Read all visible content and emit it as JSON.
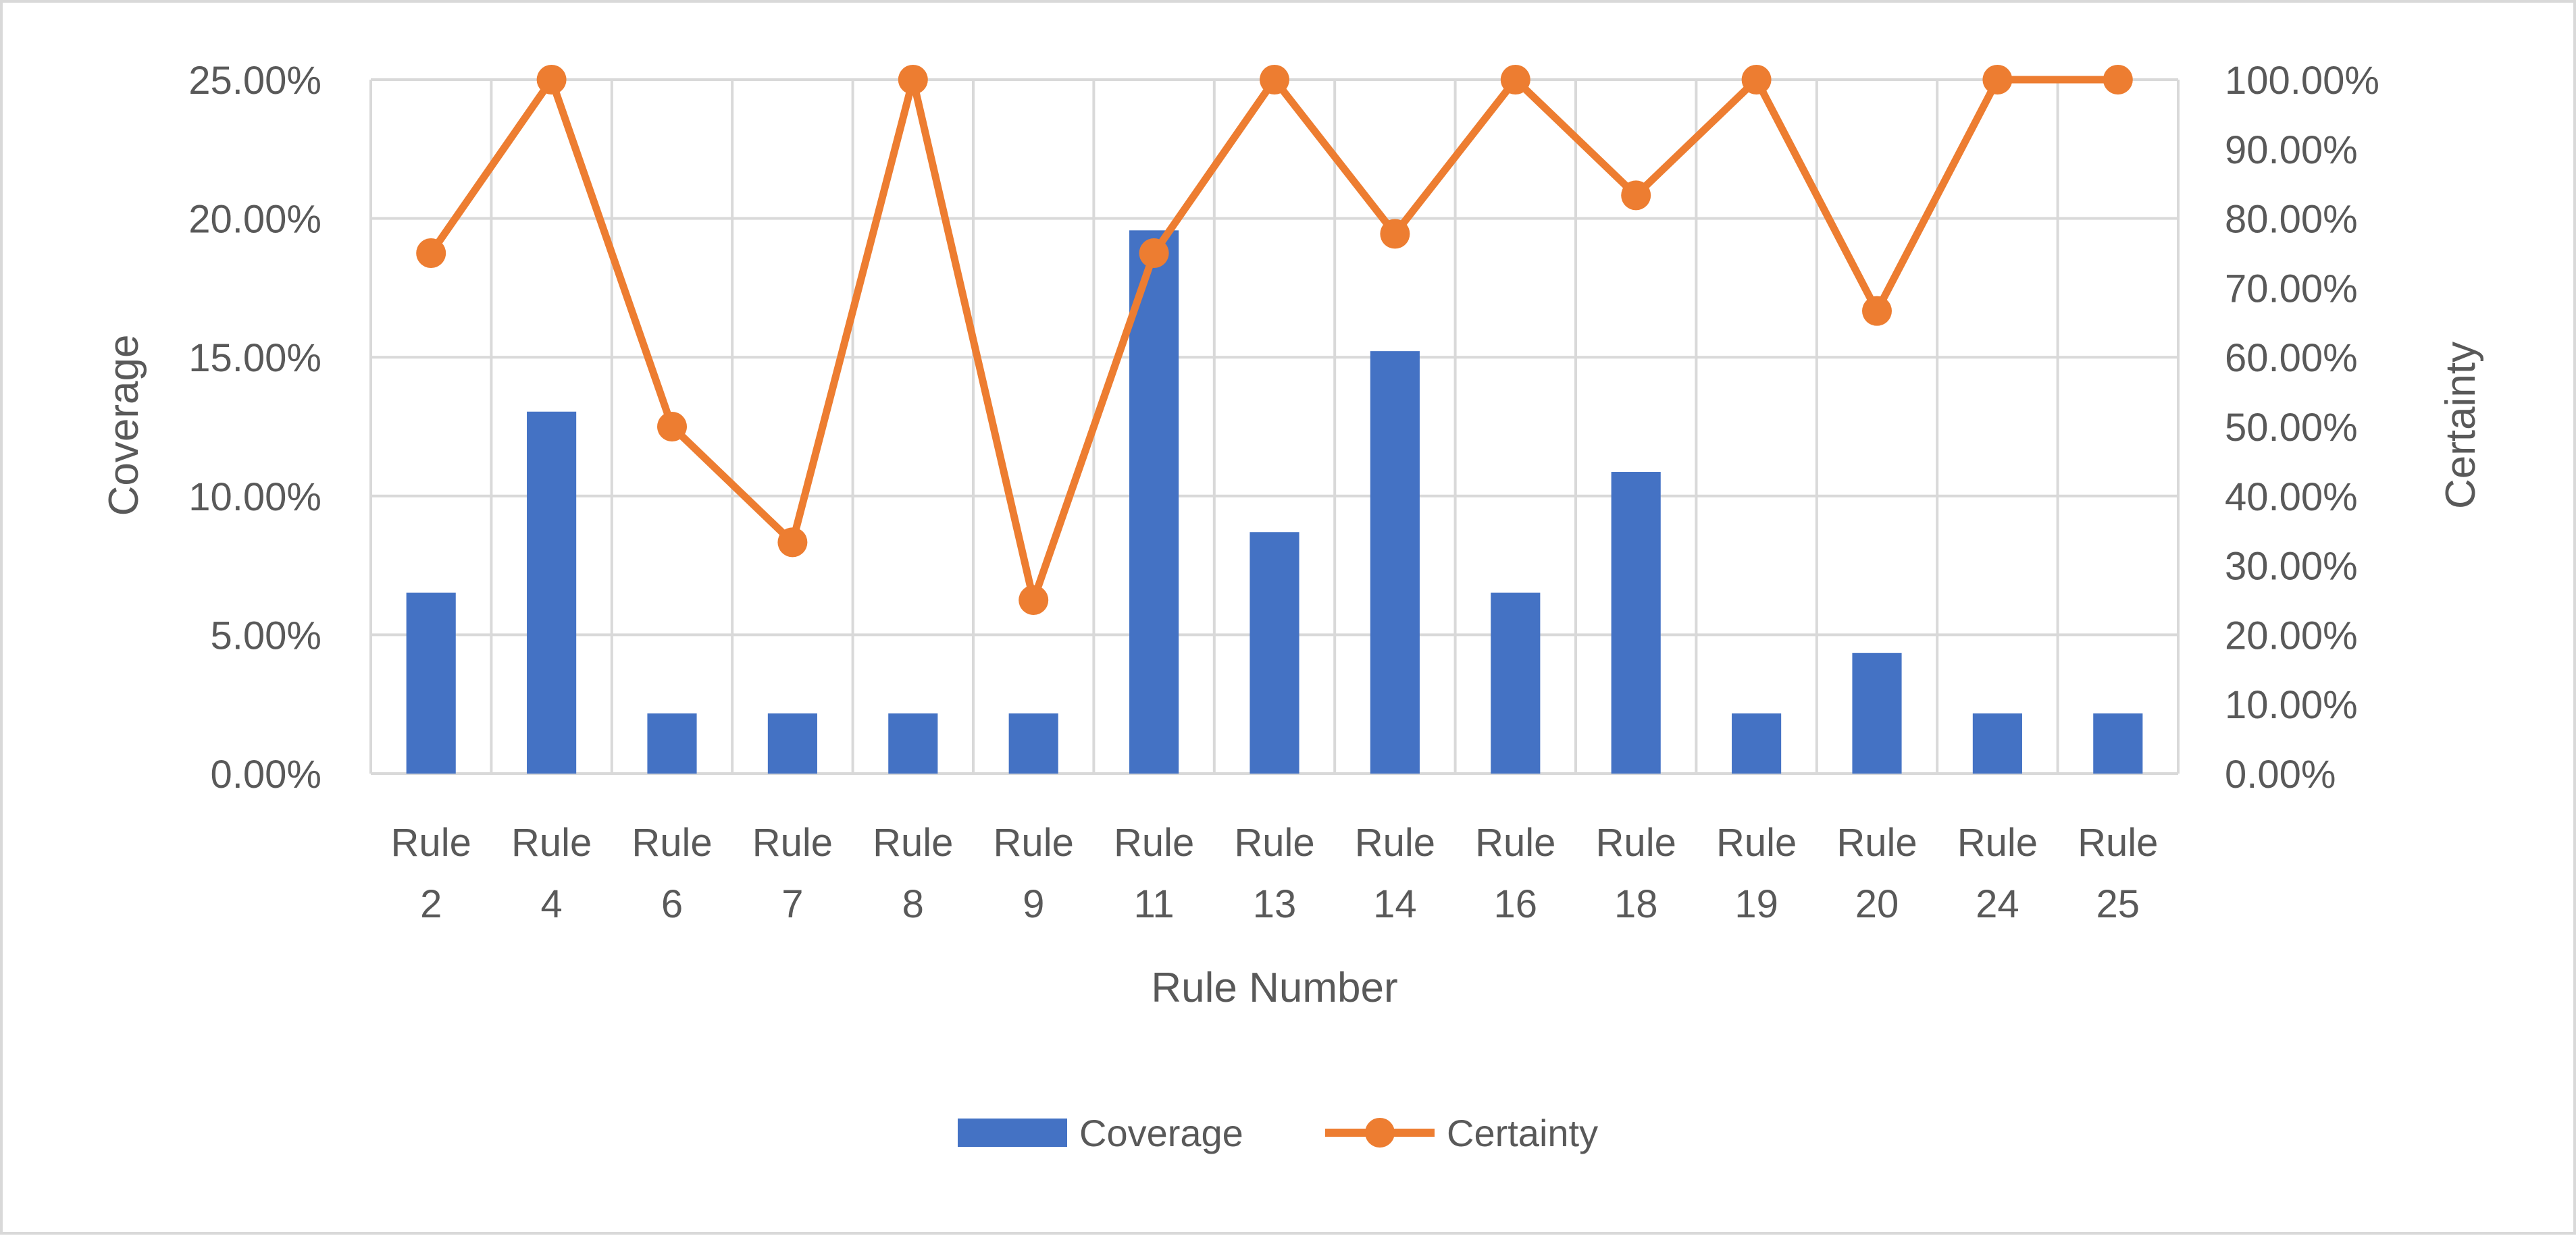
{
  "chart_data": {
    "type": "bar",
    "categories": [
      "Rule 2",
      "Rule 4",
      "Rule 6",
      "Rule 7",
      "Rule 8",
      "Rule 9",
      "Rule 11",
      "Rule 13",
      "Rule 14",
      "Rule 16",
      "Rule 18",
      "Rule 19",
      "Rule 20",
      "Rule 24",
      "Rule 25"
    ],
    "category_lines": [
      [
        "Rule",
        "2"
      ],
      [
        "Rule",
        "4"
      ],
      [
        "Rule",
        "6"
      ],
      [
        "Rule",
        "7"
      ],
      [
        "Rule",
        "8"
      ],
      [
        "Rule",
        "9"
      ],
      [
        "Rule",
        "11"
      ],
      [
        "Rule",
        "13"
      ],
      [
        "Rule",
        "14"
      ],
      [
        "Rule",
        "16"
      ],
      [
        "Rule",
        "18"
      ],
      [
        "Rule",
        "19"
      ],
      [
        "Rule",
        "20"
      ],
      [
        "Rule",
        "24"
      ],
      [
        "Rule",
        "25"
      ]
    ],
    "series": [
      {
        "name": "Coverage",
        "type": "bar",
        "axis": "left",
        "color": "#4472C4",
        "values": [
          0.0652,
          0.1304,
          0.0217,
          0.0217,
          0.0217,
          0.0217,
          0.1957,
          0.087,
          0.1522,
          0.0652,
          0.1087,
          0.0217,
          0.0435,
          0.0217,
          0.0217
        ]
      },
      {
        "name": "Certainty",
        "type": "line",
        "axis": "right",
        "color": "#ED7D31",
        "markers": true,
        "values": [
          0.75,
          1.0,
          0.5,
          0.3333,
          1.0,
          0.25,
          0.75,
          1.0,
          0.7778,
          1.0,
          0.8333,
          1.0,
          0.6667,
          1.0,
          1.0
        ]
      }
    ],
    "title": "",
    "xlabel": "Rule Number",
    "ylabel": "Coverage",
    "y2label": "Certainty",
    "ylim": [
      0,
      0.25
    ],
    "y2lim": [
      0,
      1.0
    ],
    "yticks": [
      "0.00%",
      "5.00%",
      "10.00%",
      "15.00%",
      "20.00%",
      "25.00%"
    ],
    "y2ticks": [
      "0.00%",
      "10.00%",
      "20.00%",
      "30.00%",
      "40.00%",
      "50.00%",
      "60.00%",
      "70.00%",
      "80.00%",
      "90.00%",
      "100.00%"
    ],
    "grid": true,
    "legend": {
      "position": "bottom",
      "entries": [
        "Coverage",
        "Certainty"
      ]
    },
    "colors": {
      "grid": "#D9D9D9",
      "border": "#D9D9D9",
      "text": "#595959"
    }
  }
}
